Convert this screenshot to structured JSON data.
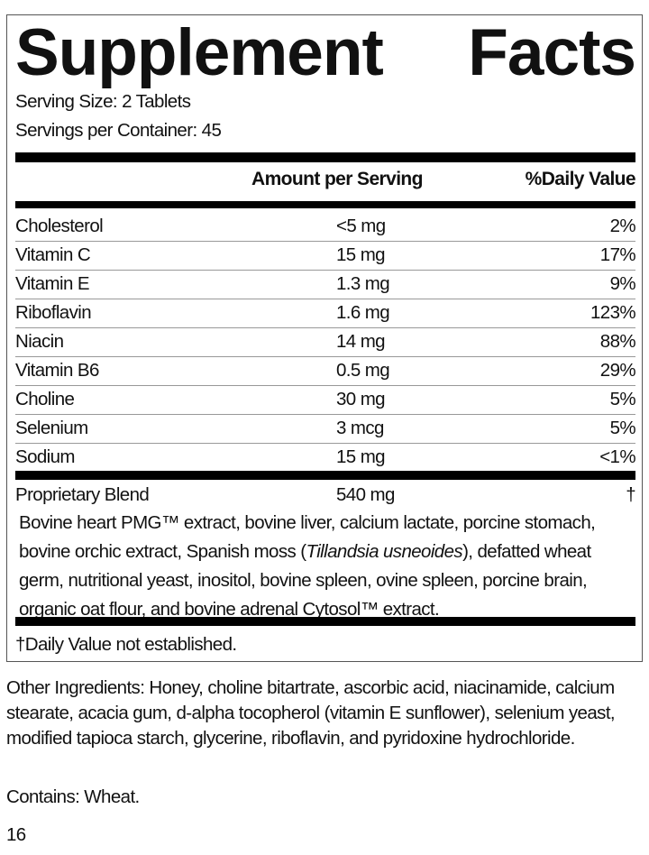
{
  "title": {
    "word1": "Supplement",
    "word2": "Facts"
  },
  "serving_size": "Serving Size: 2 Tablets",
  "servings_per_container": "Servings per Container: 45",
  "header": {
    "amount": "Amount per Serving",
    "daily_value": "%Daily Value"
  },
  "nutrients": [
    {
      "name": "Cholesterol",
      "amount": "<5 mg",
      "dv": "2%"
    },
    {
      "name": "Vitamin C",
      "amount": "15 mg",
      "dv": "17%"
    },
    {
      "name": "Vitamin E",
      "amount": "1.3 mg",
      "dv": "9%"
    },
    {
      "name": "Riboflavin",
      "amount": "1.6 mg",
      "dv": "123%"
    },
    {
      "name": "Niacin",
      "amount": "14 mg",
      "dv": "88%"
    },
    {
      "name": "Vitamin B6",
      "amount": "0.5 mg",
      "dv": "29%"
    },
    {
      "name": "Choline",
      "amount": "30 mg",
      "dv": "5%"
    },
    {
      "name": "Selenium",
      "amount": "3 mcg",
      "dv": "5%"
    },
    {
      "name": "Sodium",
      "amount": "15 mg",
      "dv": "<1%"
    }
  ],
  "blend": {
    "name": "Proprietary Blend",
    "amount": "540 mg",
    "dv": "†",
    "ingredients_pre": "Bovine heart PMG™ extract, bovine liver, calcium lactate, porcine stomach, bovine orchic extract, Spanish moss (",
    "ingredients_italic": "Tillandsia usneoides",
    "ingredients_post": "), defatted wheat germ, nutritional yeast, inositol, bovine spleen, ovine spleen, porcine brain, organic oat flour, and bovine adrenal Cytosol™ extract."
  },
  "footnote": "†Daily Value not established.",
  "other_ingredients": "Other Ingredients: Honey, choline bitartrate, ascorbic acid, niacinamide, calcium stearate, acacia gum, d-alpha tocopherol (vitamin E sunflower), selenium yeast, modified tapioca starch, glycerine, riboflavin, and pyridoxine hydrochloride.",
  "contains": "Contains: Wheat.",
  "page_number": "16"
}
